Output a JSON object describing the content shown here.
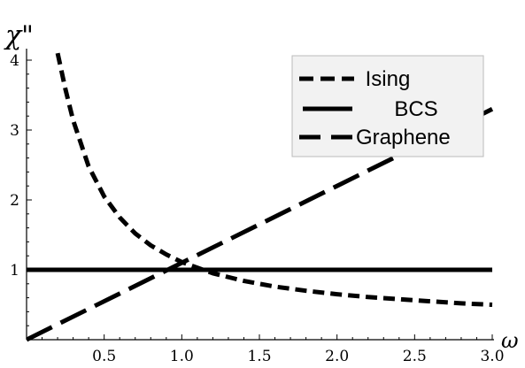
{
  "chart_data": {
    "type": "line",
    "xlabel": "ω",
    "ylabel": "χ\"",
    "xlim": [
      0,
      3.0
    ],
    "ylim": [
      0,
      4.2
    ],
    "x_ticks": [
      0.5,
      1.0,
      1.5,
      2.0,
      2.5,
      3.0
    ],
    "x_tick_labels": [
      "0.5",
      "1.0",
      "1.5",
      "2.0",
      "2.5",
      "3.0"
    ],
    "y_ticks": [
      1,
      2,
      3,
      4
    ],
    "y_tick_labels": [
      "1",
      "2",
      "3",
      "4"
    ],
    "grid": false,
    "legend_position": "top-right",
    "series": [
      {
        "name": "Ising",
        "style": "short-dash",
        "x": [
          0.2,
          0.25,
          0.3,
          0.4,
          0.5,
          0.6,
          0.7,
          0.8,
          0.9,
          1.0,
          1.2,
          1.4,
          1.6,
          1.8,
          2.0,
          2.2,
          2.4,
          2.6,
          2.8,
          3.0
        ],
        "y": [
          4.1,
          3.59,
          3.14,
          2.48,
          2.05,
          1.75,
          1.52,
          1.35,
          1.22,
          1.11,
          0.95,
          0.84,
          0.76,
          0.7,
          0.65,
          0.61,
          0.58,
          0.55,
          0.52,
          0.5
        ]
      },
      {
        "name": "BCS",
        "style": "solid",
        "x": [
          0,
          3.0
        ],
        "y": [
          1,
          1
        ]
      },
      {
        "name": "Graphene",
        "style": "long-dash",
        "x": [
          0,
          3.0
        ],
        "y": [
          0,
          3.3
        ]
      }
    ]
  }
}
